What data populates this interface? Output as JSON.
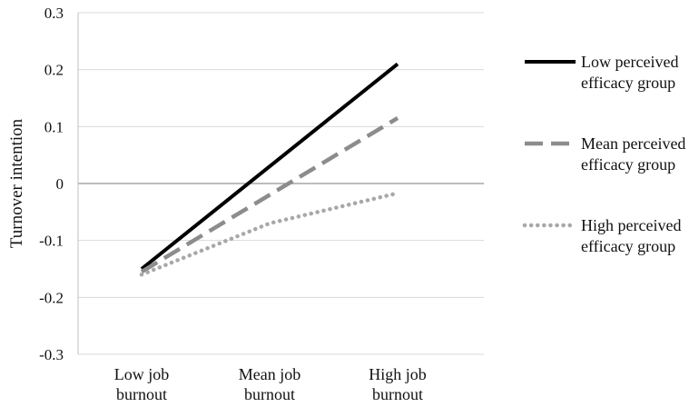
{
  "chart_data": {
    "type": "line",
    "title": "",
    "ylabel": "Turnover intention",
    "xlabel": "",
    "ylim": [
      -0.3,
      0.3
    ],
    "yticks": [
      0.3,
      0.2,
      0.1,
      0,
      -0.1,
      -0.2,
      -0.3
    ],
    "ytick_labels": [
      "0.3",
      "0.2",
      "0.1",
      "0",
      "-0.1",
      "-0.2",
      "-0.3"
    ],
    "categories": [
      [
        "Low job",
        "burnout"
      ],
      [
        "Mean  job",
        "burnout"
      ],
      [
        "High  job",
        "burnout"
      ]
    ],
    "grid": true,
    "legend_position": "right",
    "series": [
      {
        "name": [
          "Low perceived",
          "efficacy group"
        ],
        "values": [
          -0.15,
          0.03,
          0.21
        ],
        "color": "#000000",
        "style": "solid"
      },
      {
        "name": [
          "Mean perceived",
          "efficacy  group"
        ],
        "values": [
          -0.155,
          -0.02,
          0.115
        ],
        "color": "#8c8c8c",
        "style": "dashed"
      },
      {
        "name": [
          "High perceived",
          "efficacy  group"
        ],
        "values": [
          -0.16,
          -0.07,
          -0.017
        ],
        "color": "#a8a8a8",
        "style": "dotted"
      }
    ]
  }
}
